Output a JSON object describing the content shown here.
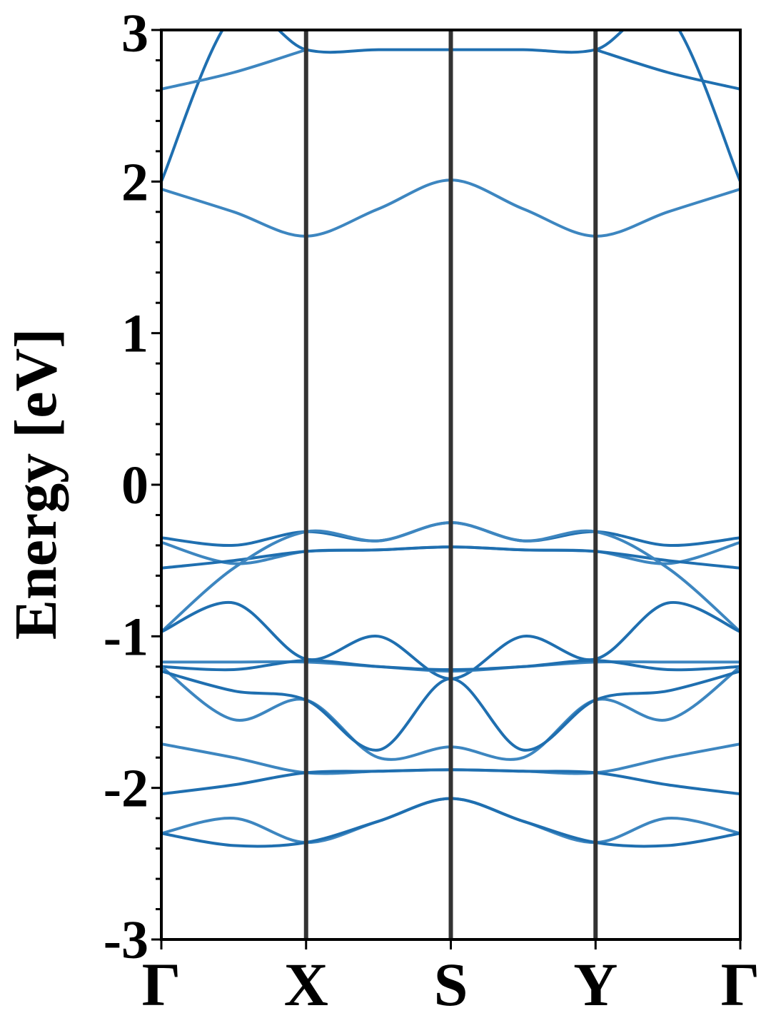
{
  "chart_data": {
    "type": "line",
    "title": "",
    "ylabel": "Energy [eV]",
    "xlabel": "",
    "ylim": [
      -3,
      3
    ],
    "y_ticks": [
      "-3",
      "-2",
      "-1",
      "0",
      "1",
      "2",
      "3"
    ],
    "y_minor_step": 0.2,
    "x_ticks": [
      "Γ",
      "X",
      "S",
      "Y",
      "Γ"
    ],
    "x_tick_positions": [
      0,
      1,
      2,
      3,
      4
    ],
    "high_symmetry_lines": [
      1,
      2,
      3
    ],
    "grid": false,
    "colors": {
      "band": "#1f6fb0",
      "band_alt": "#3d86c0",
      "symmetry_line": "#333333",
      "axes": "#000000"
    },
    "series": [
      {
        "x": [
          0,
          0.5,
          1,
          1.5,
          2,
          2.5,
          3,
          3.5,
          4
        ],
        "values": [
          2.0,
          3.1,
          2.87,
          2.87,
          2.87,
          2.87,
          2.87,
          3.1,
          2.0
        ]
      },
      {
        "x": [
          0,
          0.5,
          1
        ],
        "values": [
          2.61,
          2.72,
          2.87
        ]
      },
      {
        "x": [
          3,
          3.5,
          4
        ],
        "values": [
          2.87,
          2.72,
          2.61
        ]
      },
      {
        "x": [
          0,
          0.5,
          1,
          1.5,
          2,
          2.5,
          3,
          3.5,
          4
        ],
        "values": [
          1.95,
          1.8,
          1.64,
          1.82,
          2.01,
          1.82,
          1.64,
          1.8,
          1.95
        ]
      },
      {
        "x": [
          0,
          0.5,
          1,
          1.5,
          2,
          2.5,
          3,
          3.5,
          4
        ],
        "values": [
          -0.35,
          -0.4,
          -0.31,
          -0.37,
          -0.25,
          -0.37,
          -0.31,
          -0.4,
          -0.35
        ]
      },
      {
        "x": [
          0,
          0.5,
          1,
          1.5,
          2,
          2.5,
          3,
          3.5,
          4
        ],
        "values": [
          -0.38,
          -0.52,
          -0.44,
          -0.43,
          -0.41,
          -0.43,
          -0.44,
          -0.52,
          -0.38
        ]
      },
      {
        "x": [
          0,
          0.5,
          1,
          1.5,
          2,
          2.5,
          3,
          3.5,
          4
        ],
        "values": [
          -0.55,
          -0.5,
          -0.44,
          -0.43,
          -0.41,
          -0.43,
          -0.44,
          -0.5,
          -0.55
        ]
      },
      {
        "x": [
          0,
          0.5,
          1,
          1.5,
          2,
          2.5,
          3,
          3.5,
          4
        ],
        "values": [
          -0.97,
          -0.55,
          -0.31,
          -0.37,
          -0.25,
          -0.37,
          -0.31,
          -0.55,
          -0.97
        ]
      },
      {
        "x": [
          0,
          0.5,
          1,
          1.5,
          2,
          2.5,
          3,
          3.5,
          4
        ],
        "values": [
          -0.97,
          -0.78,
          -1.15,
          -1.0,
          -1.28,
          -1.0,
          -1.15,
          -0.78,
          -0.97
        ]
      },
      {
        "x": [
          0,
          0.5,
          1,
          1.5,
          2,
          2.5,
          3,
          3.5,
          4
        ],
        "values": [
          -1.17,
          -1.17,
          -1.17,
          -1.2,
          -1.23,
          -1.2,
          -1.17,
          -1.17,
          -1.17
        ]
      },
      {
        "x": [
          0,
          0.5,
          1,
          1.5,
          2,
          2.5,
          3,
          3.5,
          4
        ],
        "values": [
          -1.2,
          -1.22,
          -1.16,
          -1.2,
          -1.22,
          -1.2,
          -1.16,
          -1.22,
          -1.2
        ]
      },
      {
        "x": [
          0,
          0.5,
          1,
          1.5,
          2,
          2.5,
          3,
          3.5,
          4
        ],
        "values": [
          -1.2,
          -1.55,
          -1.42,
          -1.8,
          -1.73,
          -1.8,
          -1.42,
          -1.55,
          -1.2
        ]
      },
      {
        "x": [
          0,
          0.5,
          1,
          1.5,
          2,
          2.5,
          3,
          3.5,
          4
        ],
        "values": [
          -1.23,
          -1.36,
          -1.42,
          -1.75,
          -1.28,
          -1.75,
          -1.42,
          -1.36,
          -1.23
        ]
      },
      {
        "x": [
          0,
          0.5,
          1,
          1.5,
          2,
          2.5,
          3,
          3.5,
          4
        ],
        "values": [
          -1.71,
          -1.8,
          -1.9,
          -1.89,
          -1.88,
          -1.89,
          -1.9,
          -1.8,
          -1.71
        ]
      },
      {
        "x": [
          0,
          0.5,
          1,
          1.5,
          2,
          2.5,
          3,
          3.5,
          4
        ],
        "values": [
          -2.04,
          -1.98,
          -1.9,
          -1.89,
          -1.88,
          -1.89,
          -1.9,
          -1.98,
          -2.04
        ]
      },
      {
        "x": [
          0,
          0.5,
          1,
          1.5,
          2,
          2.5,
          3,
          3.5,
          4
        ],
        "values": [
          -2.3,
          -2.2,
          -2.36,
          -2.22,
          -2.07,
          -2.22,
          -2.36,
          -2.2,
          -2.3
        ]
      },
      {
        "x": [
          0,
          0.5,
          1,
          1.5,
          2,
          2.5,
          3,
          3.5,
          4
        ],
        "values": [
          -2.3,
          -2.38,
          -2.36,
          -2.22,
          -2.07,
          -2.22,
          -2.36,
          -2.38,
          -2.3
        ]
      }
    ]
  }
}
